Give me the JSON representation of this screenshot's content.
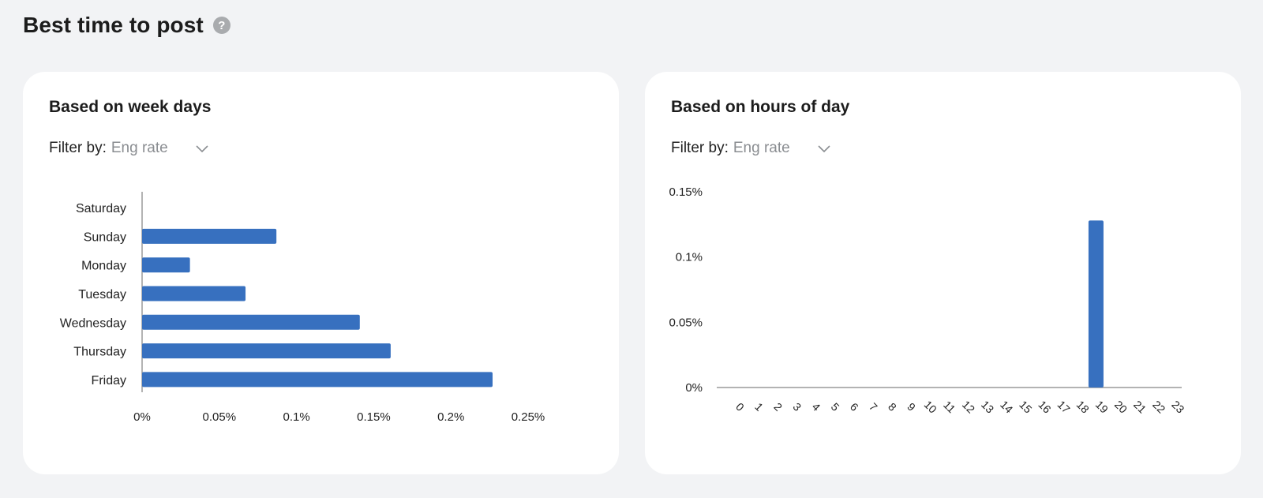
{
  "page": {
    "title": "Best time to post",
    "help_symbol": "?"
  },
  "colors": {
    "bar": "#3770bf",
    "axis": "#9a9a9a",
    "background": "#f2f3f5",
    "card": "#ffffff"
  },
  "cards": [
    {
      "title": "Based on week days",
      "filter_label": "Filter by:",
      "filter_value": "Eng rate"
    },
    {
      "title": "Based on hours of day",
      "filter_label": "Filter by:",
      "filter_value": "Eng rate"
    }
  ],
  "chart_data": [
    {
      "type": "bar",
      "orientation": "horizontal",
      "categories": [
        "Saturday",
        "Sunday",
        "Monday",
        "Tuesday",
        "Wednesday",
        "Thursday",
        "Friday"
      ],
      "values": [
        0,
        0.087,
        0.031,
        0.067,
        0.141,
        0.161,
        0.227
      ],
      "xlim": [
        0,
        0.25
      ],
      "xticks": [
        0,
        0.05,
        0.1,
        0.15,
        0.2,
        0.25
      ],
      "xtick_labels": [
        "0%",
        "0.05%",
        "0.1%",
        "0.15%",
        "0.2%",
        "0.25%"
      ],
      "grid": false
    },
    {
      "type": "bar",
      "orientation": "vertical",
      "categories": [
        "0",
        "1",
        "2",
        "3",
        "4",
        "5",
        "6",
        "7",
        "8",
        "9",
        "10",
        "11",
        "12",
        "13",
        "14",
        "15",
        "16",
        "17",
        "18",
        "19",
        "20",
        "21",
        "22",
        "23"
      ],
      "values": [
        0,
        0,
        0,
        0,
        0,
        0,
        0,
        0,
        0,
        0,
        0,
        0,
        0,
        0,
        0,
        0,
        0,
        0,
        0,
        0.128,
        0,
        0,
        0,
        0
      ],
      "ylim": [
        0,
        0.15
      ],
      "yticks": [
        0,
        0.05,
        0.1,
        0.15
      ],
      "ytick_labels": [
        "0%",
        "0.05%",
        "0.1%",
        "0.15%"
      ],
      "grid": false
    }
  ]
}
